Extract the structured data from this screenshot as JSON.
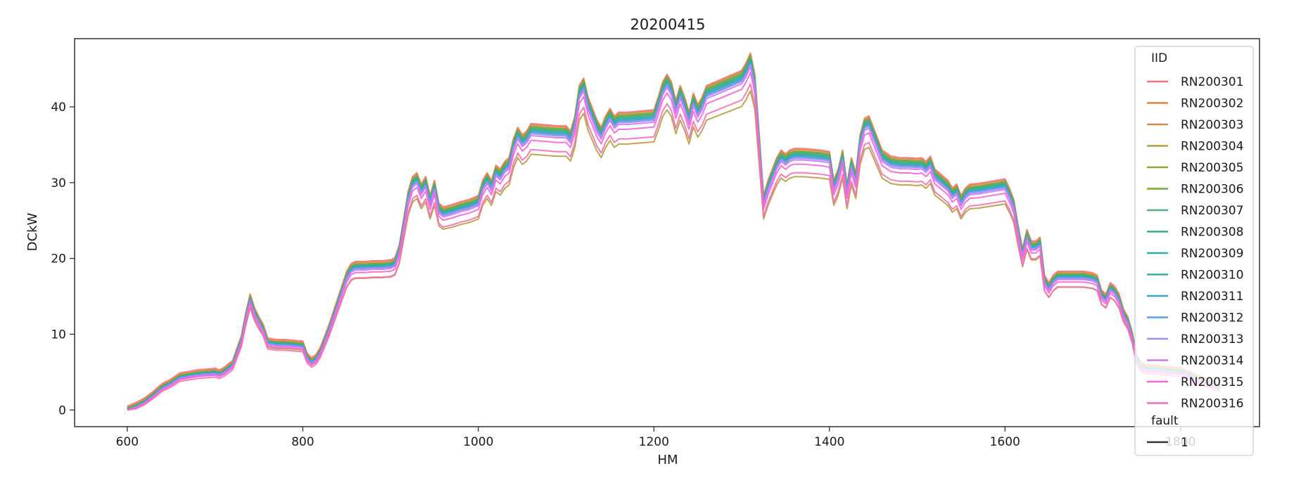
{
  "chart_data": {
    "type": "line",
    "title": "20200415",
    "xlabel": "HM",
    "ylabel": "DCkW",
    "xlim": [
      540,
      1890
    ],
    "ylim": [
      -2.2,
      49.0
    ],
    "xticks": [
      600,
      800,
      1000,
      1200,
      1400,
      1600,
      1800
    ],
    "yticks": [
      0,
      10,
      20,
      30,
      40
    ],
    "grid": false,
    "legend": {
      "placement": "top-right",
      "title": "IID",
      "size_title": "fault",
      "size_entry": "1"
    },
    "x": [
      600,
      610,
      620,
      630,
      640,
      650,
      660,
      670,
      680,
      690,
      700,
      705,
      710,
      720,
      730,
      735,
      740,
      745,
      750,
      755,
      760,
      770,
      780,
      790,
      800,
      805,
      810,
      815,
      820,
      830,
      840,
      850,
      855,
      860,
      870,
      880,
      890,
      900,
      905,
      910,
      915,
      920,
      925,
      930,
      935,
      940,
      945,
      950,
      955,
      960,
      970,
      980,
      990,
      1000,
      1005,
      1010,
      1015,
      1020,
      1025,
      1030,
      1035,
      1040,
      1045,
      1050,
      1055,
      1060,
      1070,
      1080,
      1090,
      1100,
      1105,
      1110,
      1115,
      1120,
      1125,
      1130,
      1135,
      1140,
      1145,
      1150,
      1155,
      1160,
      1170,
      1180,
      1190,
      1200,
      1205,
      1210,
      1215,
      1220,
      1225,
      1230,
      1235,
      1240,
      1245,
      1250,
      1255,
      1260,
      1270,
      1280,
      1290,
      1300,
      1305,
      1310,
      1315,
      1320,
      1325,
      1330,
      1335,
      1340,
      1345,
      1350,
      1355,
      1360,
      1370,
      1380,
      1390,
      1400,
      1405,
      1410,
      1415,
      1420,
      1425,
      1430,
      1435,
      1440,
      1445,
      1450,
      1455,
      1460,
      1470,
      1480,
      1490,
      1500,
      1505,
      1510,
      1515,
      1520,
      1525,
      1530,
      1535,
      1540,
      1545,
      1550,
      1555,
      1560,
      1570,
      1580,
      1590,
      1600,
      1605,
      1610,
      1615,
      1620,
      1625,
      1630,
      1635,
      1640,
      1645,
      1650,
      1655,
      1660,
      1670,
      1680,
      1690,
      1700,
      1705,
      1710,
      1715,
      1720,
      1725,
      1730,
      1735,
      1740,
      1745,
      1750,
      1755,
      1760,
      1770,
      1780,
      1790,
      1800,
      1810,
      1820,
      1830,
      1840,
      1845
    ],
    "base": [
      0.2,
      0.7,
      1.3,
      2.2,
      3.2,
      3.8,
      4.6,
      4.8,
      5.0,
      5.1,
      5.2,
      5.0,
      5.3,
      6.2,
      9.5,
      12.5,
      15.0,
      13.2,
      12.0,
      11.0,
      9.2,
      9.0,
      9.0,
      8.9,
      8.8,
      7.2,
      6.6,
      7.0,
      8.0,
      11.0,
      14.5,
      18.0,
      19.0,
      19.3,
      19.3,
      19.4,
      19.4,
      19.5,
      19.8,
      21.5,
      25.0,
      28.5,
      30.5,
      31.0,
      29.5,
      30.5,
      28.0,
      30.0,
      27.0,
      26.5,
      26.8,
      27.2,
      27.5,
      28.0,
      30.0,
      31.0,
      30.0,
      32.0,
      31.5,
      32.5,
      33.0,
      35.5,
      37.0,
      36.0,
      36.5,
      37.5,
      37.4,
      37.3,
      37.2,
      37.2,
      36.5,
      38.5,
      42.5,
      43.5,
      41.0,
      39.5,
      38.0,
      37.0,
      38.5,
      39.5,
      38.5,
      39.0,
      39.0,
      39.1,
      39.2,
      39.3,
      41.0,
      43.0,
      44.0,
      43.0,
      40.5,
      42.5,
      41.0,
      39.0,
      41.5,
      40.0,
      41.0,
      42.5,
      43.0,
      43.5,
      44.0,
      44.5,
      45.5,
      46.8,
      44.0,
      36.0,
      28.0,
      30.0,
      31.5,
      33.0,
      34.0,
      33.5,
      34.0,
      34.2,
      34.2,
      34.1,
      34.0,
      33.8,
      30.0,
      31.5,
      34.0,
      29.5,
      33.0,
      31.0,
      36.0,
      38.2,
      38.5,
      37.0,
      35.5,
      34.0,
      33.2,
      33.0,
      33.0,
      32.9,
      33.0,
      32.5,
      33.2,
      31.5,
      31.0,
      30.5,
      30.0,
      29.0,
      29.5,
      28.0,
      29.0,
      29.5,
      29.6,
      29.8,
      30.0,
      30.2,
      29.0,
      27.5,
      24.0,
      21.0,
      23.5,
      22.0,
      22.0,
      22.5,
      17.5,
      16.5,
      17.5,
      18.0,
      18.0,
      18.0,
      18.0,
      17.8,
      17.5,
      15.5,
      15.0,
      16.5,
      16.0,
      15.0,
      13.0,
      12.0,
      10.0,
      7.0,
      6.0,
      5.7,
      5.6,
      5.5,
      5.4,
      5.3,
      4.8,
      4.3,
      3.8,
      3.4,
      3.2
    ],
    "series": [
      {
        "name": "RN200301",
        "color": "#f77189",
        "scale": 1.0,
        "offset": 0.3
      },
      {
        "name": "RN200302",
        "color": "#e5823b",
        "scale": 1.0,
        "offset": 0.15
      },
      {
        "name": "RN200303",
        "color": "#cb914c",
        "scale": 0.995,
        "offset": 0.05
      },
      {
        "name": "RN200304",
        "color": "#b59d3b",
        "scale": 0.9,
        "offset": 0.0
      },
      {
        "name": "RN200305",
        "color": "#97a431",
        "scale": 0.995,
        "offset": 0.0
      },
      {
        "name": "RN200306",
        "color": "#6fad32",
        "scale": 1.0,
        "offset": -0.05
      },
      {
        "name": "RN200307",
        "color": "#4fb17a",
        "scale": 0.995,
        "offset": -0.1
      },
      {
        "name": "RN200308",
        "color": "#33af8e",
        "scale": 0.992,
        "offset": -0.1
      },
      {
        "name": "RN200309",
        "color": "#35ac9f",
        "scale": 0.99,
        "offset": -0.15
      },
      {
        "name": "RN200310",
        "color": "#38aaad",
        "scale": 0.988,
        "offset": -0.2
      },
      {
        "name": "RN200311",
        "color": "#3ba5bf",
        "scale": 0.985,
        "offset": -0.2
      },
      {
        "name": "RN200312",
        "color": "#5a9ee6",
        "scale": 0.983,
        "offset": -0.25
      },
      {
        "name": "RN200313",
        "color": "#9a8ef4",
        "scale": 0.98,
        "offset": -0.3
      },
      {
        "name": "RN200314",
        "color": "#cc79f4",
        "scale": 0.975,
        "offset": -0.35
      },
      {
        "name": "RN200315",
        "color": "#f264d8",
        "scale": 0.96,
        "offset": -0.4
      },
      {
        "name": "RN200316",
        "color": "#f46fb3",
        "scale": 0.93,
        "offset": -0.5
      }
    ]
  }
}
